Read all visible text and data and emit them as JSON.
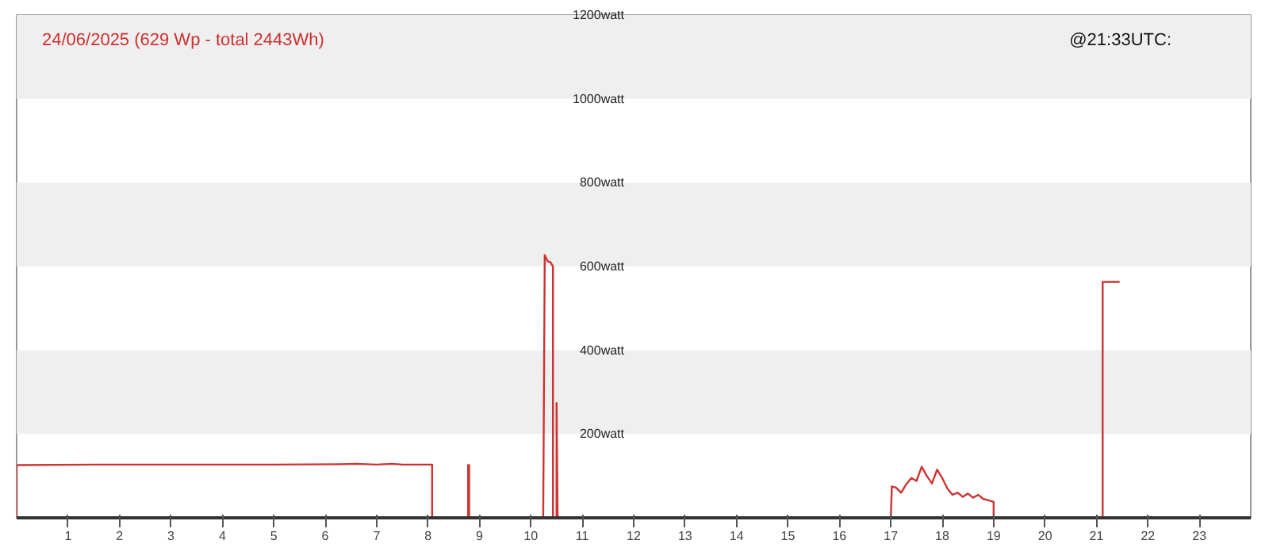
{
  "chart_data": {
    "type": "line",
    "title": "24/06/2025 (629 Wp - total 2443Wh)",
    "annotations": [
      "@21:33UTC:"
    ],
    "series": [
      {
        "color": "#cc3333",
        "x": [
          0,
          0,
          1.5,
          5,
          6.3,
          6.6,
          7,
          7.3,
          7.5,
          8.08,
          8.08,
          8.78,
          8.78,
          8.8,
          8.8,
          10.24,
          10.27,
          10.33,
          10.38,
          10.43,
          10.43,
          10.5,
          10.5,
          10.51,
          10.52,
          17.0,
          17.02,
          17.1,
          17.2,
          17.3,
          17.4,
          17.5,
          17.6,
          17.7,
          17.8,
          17.9,
          18.0,
          18.1,
          18.2,
          18.3,
          18.4,
          18.5,
          18.6,
          18.7,
          18.8,
          18.9,
          19.0,
          19.0,
          21.12,
          21.12,
          21.45
        ],
        "values": [
          0,
          126,
          127,
          127,
          128,
          129,
          127,
          129,
          127,
          127,
          0,
          0,
          126,
          126,
          0,
          0,
          627,
          612,
          610,
          600,
          0,
          0,
          274,
          137,
          0,
          0,
          75,
          72,
          60,
          80,
          95,
          88,
          122,
          100,
          82,
          115,
          95,
          70,
          55,
          60,
          50,
          58,
          48,
          55,
          45,
          42,
          38,
          0,
          0,
          563,
          563
        ]
      }
    ],
    "xlim": [
      0,
      24
    ],
    "xticks": [
      1,
      2,
      3,
      4,
      5,
      6,
      7,
      8,
      9,
      10,
      11,
      12,
      13,
      14,
      15,
      16,
      17,
      18,
      19,
      20,
      21,
      22,
      23
    ],
    "ylim": [
      0,
      1200
    ],
    "yticks": [
      {
        "value": 200,
        "label": "200watt"
      },
      {
        "value": 400,
        "label": "400watt"
      },
      {
        "value": 600,
        "label": "600watt"
      },
      {
        "value": 800,
        "label": "800watt"
      },
      {
        "value": 1000,
        "label": "1000watt"
      },
      {
        "value": 1200,
        "label": "1200watt"
      }
    ],
    "bands": [
      {
        "axis": "y",
        "from": 200,
        "to": 400,
        "color": "#efefef"
      },
      {
        "axis": "y",
        "from": 600,
        "to": 800,
        "color": "#efefef"
      },
      {
        "axis": "y",
        "from": 1000,
        "to": 1200,
        "color": "#efefef"
      }
    ],
    "line_style": "solid"
  }
}
